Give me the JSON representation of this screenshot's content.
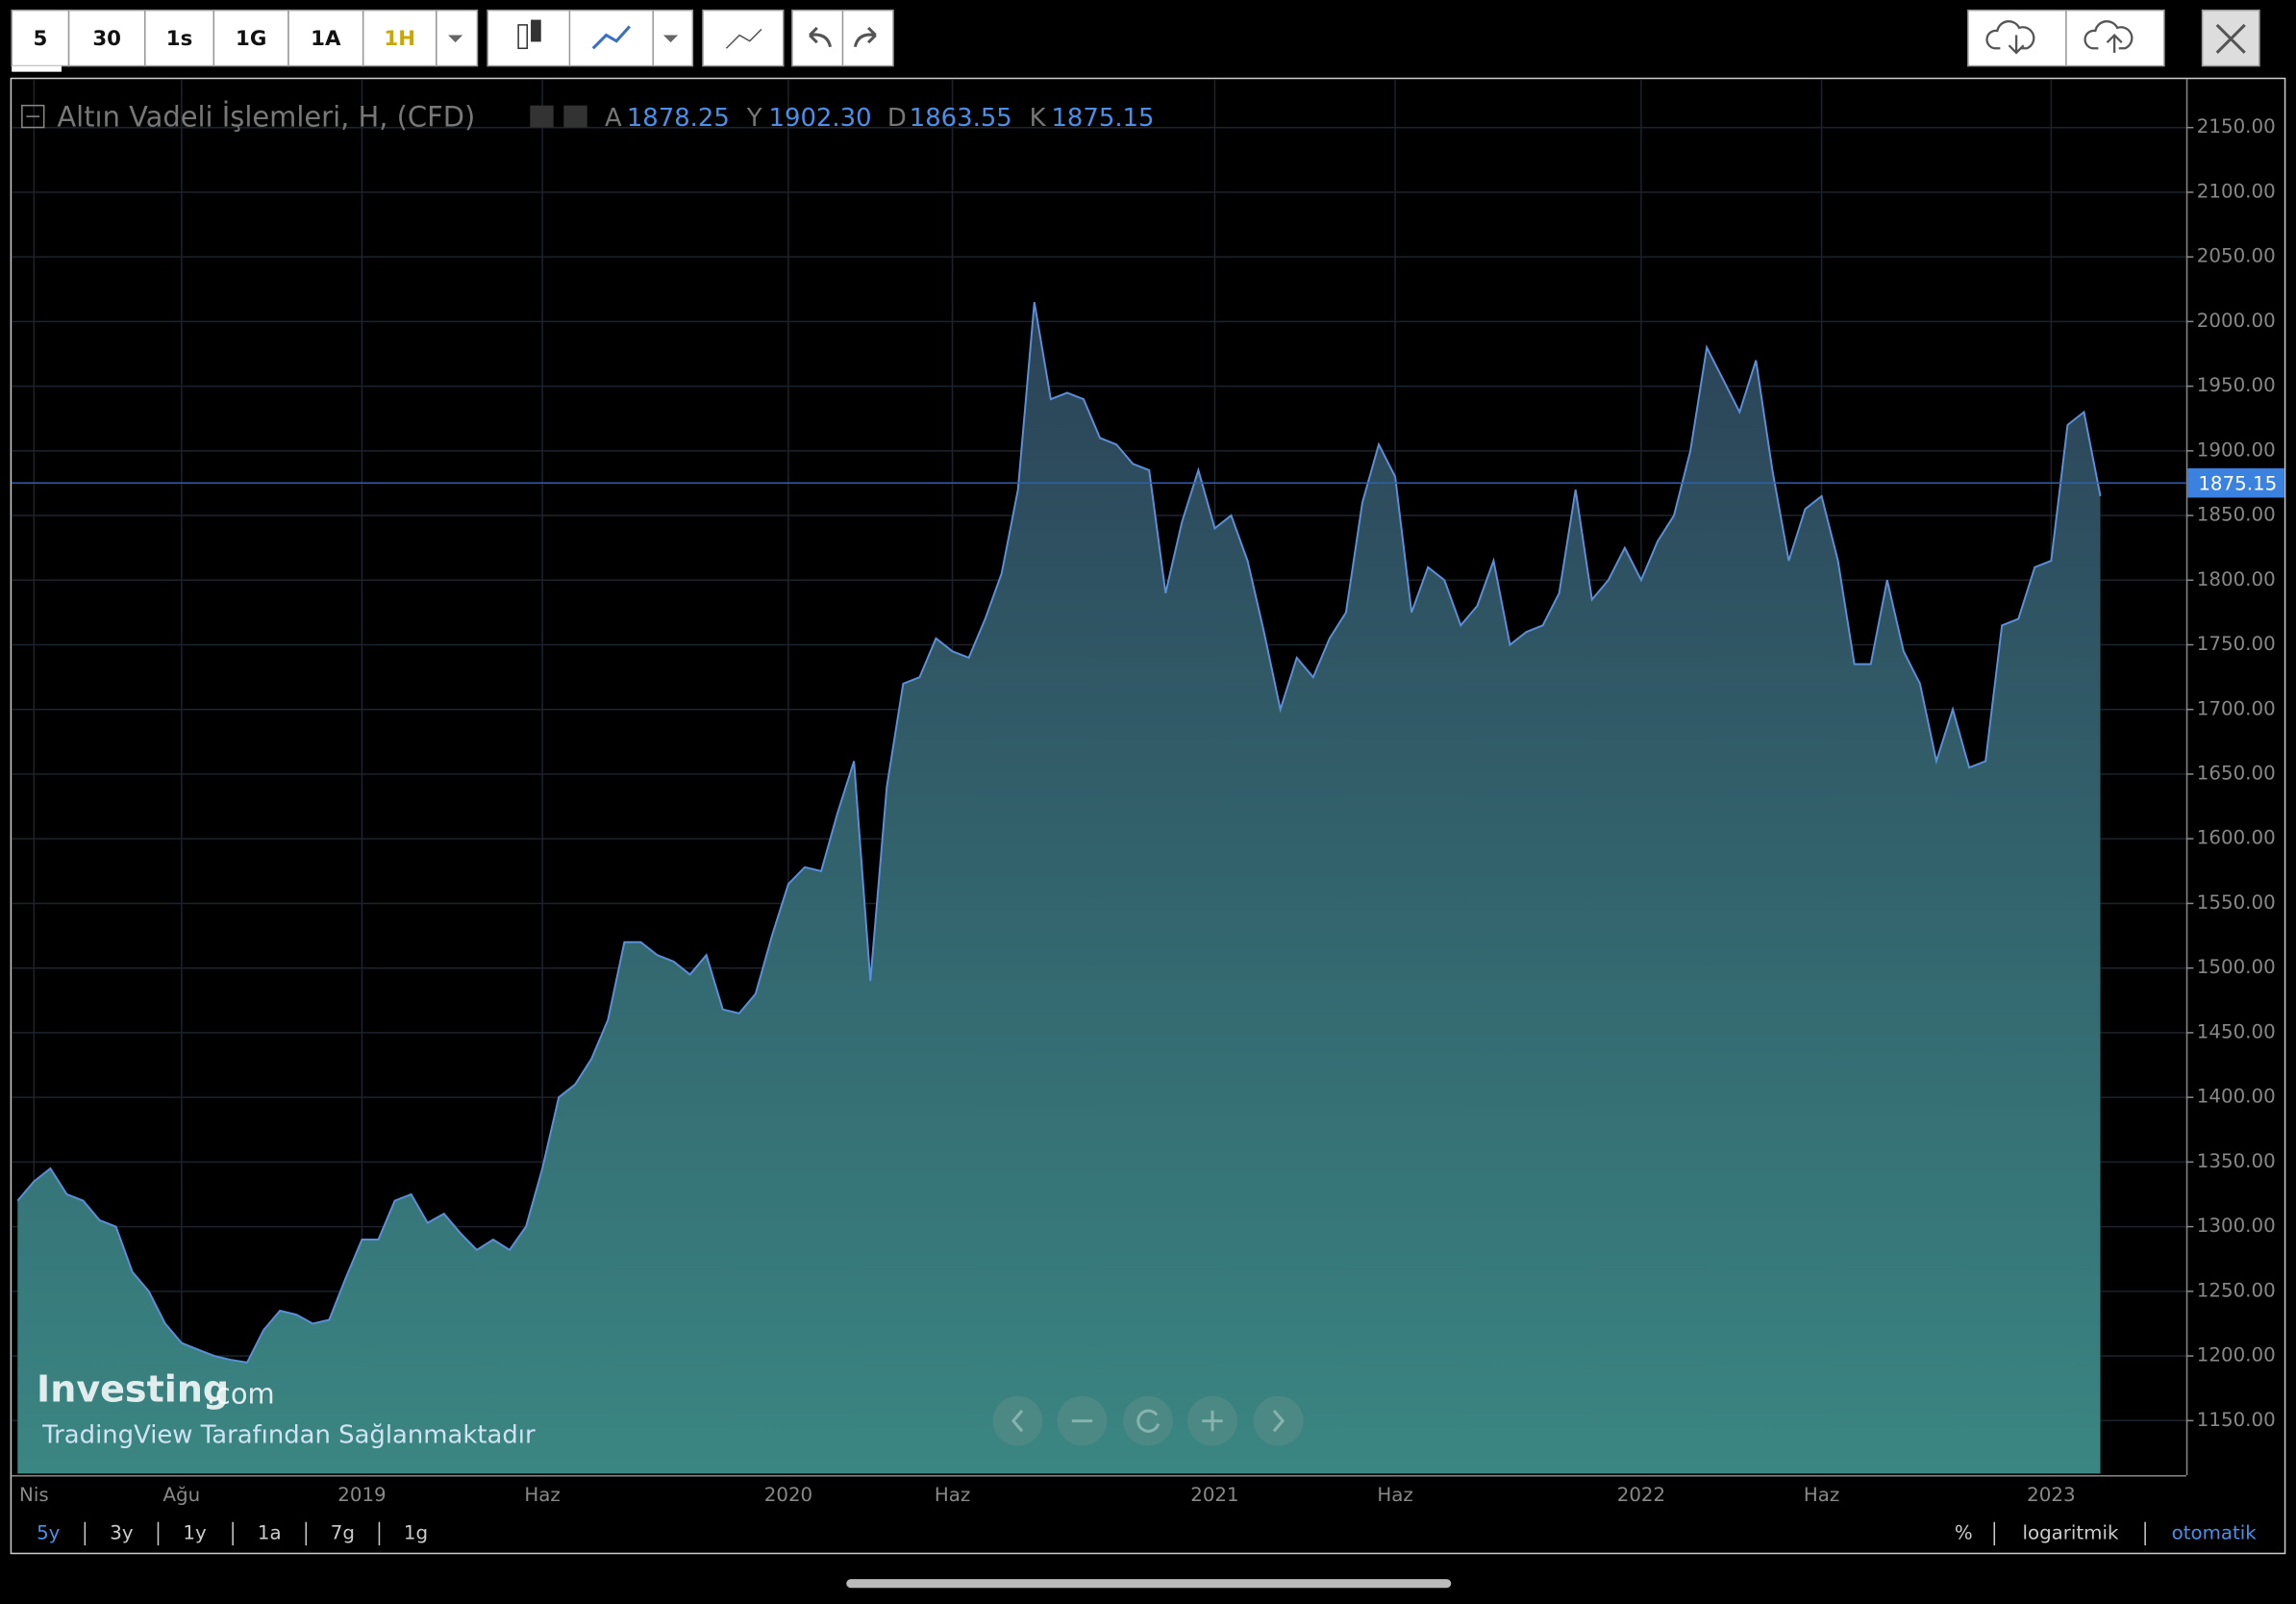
{
  "ui": {
    "toolbar": [
      "5",
      "30",
      "1s",
      "1G",
      "1A",
      "1H"
    ],
    "header": {
      "title": "Altın Vadeli İşlemleri, H, (CFD)",
      "fields": [
        [
          "A",
          "1878.25"
        ],
        [
          "Y",
          "1902.30"
        ],
        [
          "D",
          "1863.55"
        ],
        [
          "K",
          "1875.15"
        ]
      ]
    },
    "ranges": [
      "5y",
      "3y",
      "1y",
      "1a",
      "7g",
      "1g"
    ],
    "scale_options": [
      "%",
      "logaritmik",
      "otomatik"
    ],
    "brand": "Investing",
    "brand_suffix": ".com",
    "credit": "TradingView Tarafından Sağlanmaktadır"
  },
  "chart_data": {
    "type": "area",
    "color": "#5b8fd8",
    "grid": true,
    "categories": [
      null,
      "Nis",
      null,
      null,
      null,
      null,
      null,
      null,
      null,
      null,
      "Ağu",
      null,
      null,
      null,
      null,
      null,
      null,
      null,
      null,
      null,
      null,
      "2019",
      null,
      null,
      null,
      null,
      null,
      null,
      null,
      null,
      null,
      null,
      "Haz",
      null,
      null,
      null,
      null,
      null,
      null,
      null,
      null,
      null,
      null,
      null,
      null,
      null,
      null,
      "2020",
      null,
      null,
      null,
      null,
      null,
      null,
      null,
      null,
      null,
      "Haz",
      null,
      null,
      null,
      null,
      null,
      null,
      null,
      null,
      null,
      null,
      null,
      null,
      null,
      null,
      null,
      "2021",
      null,
      null,
      null,
      null,
      null,
      null,
      null,
      null,
      null,
      null,
      "Haz",
      null,
      null,
      null,
      null,
      null,
      null,
      null,
      null,
      null,
      null,
      null,
      null,
      null,
      null,
      "2022",
      null,
      null,
      null,
      null,
      null,
      null,
      null,
      null,
      null,
      null,
      "Haz",
      null,
      null,
      null,
      null,
      null,
      null,
      null,
      null,
      null,
      null,
      null,
      null,
      null,
      "2023",
      null,
      null,
      null
    ],
    "values": [
      1320,
      1335,
      1345,
      1325,
      1320,
      1305,
      1300,
      1265,
      1250,
      1225,
      1210,
      1205,
      1200,
      1197,
      1195,
      1220,
      1235,
      1232,
      1225,
      1228,
      1260,
      1290,
      1290,
      1320,
      1325,
      1303,
      1310,
      1295,
      1282,
      1290,
      1282,
      1300,
      1345,
      1400,
      1410,
      1430,
      1460,
      1520,
      1520,
      1510,
      1505,
      1495,
      1510,
      1468,
      1465,
      1480,
      1525,
      1565,
      1578,
      1575,
      1620,
      1660,
      1490,
      1640,
      1720,
      1725,
      1755,
      1745,
      1740,
      1770,
      1805,
      1870,
      2015,
      1940,
      1945,
      1940,
      1910,
      1905,
      1890,
      1885,
      1790,
      1845,
      1885,
      1840,
      1850,
      1815,
      1760,
      1700,
      1740,
      1725,
      1755,
      1775,
      1860,
      1905,
      1880,
      1775,
      1810,
      1800,
      1765,
      1780,
      1815,
      1750,
      1760,
      1765,
      1790,
      1870,
      1785,
      1800,
      1825,
      1800,
      1830,
      1850,
      1900,
      1980,
      1955,
      1930,
      1970,
      1885,
      1815,
      1855,
      1865,
      1815,
      1735,
      1735,
      1800,
      1745,
      1720,
      1660,
      1700,
      1655,
      1660,
      1765,
      1770,
      1810,
      1815,
      1920,
      1930,
      1865
    ],
    "current_price": 1875.15,
    "ylim": [
      1109,
      2187.5
    ],
    "yticks": [
      {
        "value": 1150,
        "label": "1150.00"
      },
      {
        "value": 1200,
        "label": "1200.00"
      },
      {
        "value": 1250,
        "label": "1250.00"
      },
      {
        "value": 1300,
        "label": "1300.00"
      },
      {
        "value": 1350,
        "label": "1350.00"
      },
      {
        "value": 1400,
        "label": "1400.00"
      },
      {
        "value": 1450,
        "label": "1450.00"
      },
      {
        "value": 1500,
        "label": "1500.00"
      },
      {
        "value": 1550,
        "label": "1550.00"
      },
      {
        "value": 1600,
        "label": "1600.00"
      },
      {
        "value": 1650,
        "label": "1650.00"
      },
      {
        "value": 1700,
        "label": "1700.00"
      },
      {
        "value": 1750,
        "label": "1750.00"
      },
      {
        "value": 1800,
        "label": "1800.00"
      },
      {
        "value": 1850,
        "label": "1850.00"
      },
      {
        "value": 1900,
        "label": "1900.00"
      },
      {
        "value": 1950,
        "label": "1950.00"
      },
      {
        "value": 2000,
        "label": "2000.00"
      },
      {
        "value": 2050,
        "label": "2050.00"
      },
      {
        "value": 2100,
        "label": "2100.00"
      },
      {
        "value": 2150,
        "label": "2150.00"
      }
    ]
  }
}
